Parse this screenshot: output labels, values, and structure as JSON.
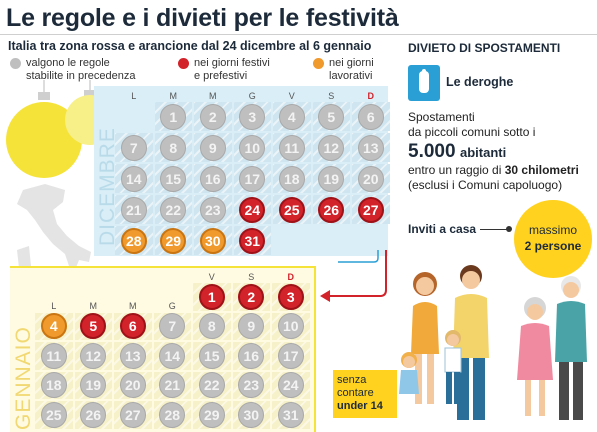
{
  "header": {
    "title": "Le regole e i divieti per le festività",
    "subtitle": "Italia tra zona rossa e arancione dal 24 dicembre al 6 gennaio"
  },
  "legend": [
    {
      "line1": "valgono le regole",
      "line2": "stabilite in precedenza",
      "color": "#bfbfbf"
    },
    {
      "line1": "nei giorni festivi",
      "line2": "e prefestivi",
      "color": "#d2222a"
    },
    {
      "line1": "nei giorni",
      "line2": "lavorativi",
      "color": "#f0992c"
    }
  ],
  "weekdays": [
    "L",
    "M",
    "M",
    "G",
    "V",
    "S",
    "D"
  ],
  "december": {
    "label": "DICEMBRE",
    "days": [
      {
        "n": "1",
        "s": "gray"
      },
      {
        "n": "2",
        "s": "gray"
      },
      {
        "n": "3",
        "s": "gray"
      },
      {
        "n": "4",
        "s": "gray"
      },
      {
        "n": "5",
        "s": "gray"
      },
      {
        "n": "6",
        "s": "gray"
      },
      {
        "n": "7",
        "s": "gray"
      },
      {
        "n": "8",
        "s": "gray"
      },
      {
        "n": "9",
        "s": "gray"
      },
      {
        "n": "10",
        "s": "gray"
      },
      {
        "n": "11",
        "s": "gray"
      },
      {
        "n": "12",
        "s": "gray"
      },
      {
        "n": "13",
        "s": "gray"
      },
      {
        "n": "14",
        "s": "gray"
      },
      {
        "n": "15",
        "s": "gray"
      },
      {
        "n": "16",
        "s": "gray"
      },
      {
        "n": "17",
        "s": "gray"
      },
      {
        "n": "18",
        "s": "gray"
      },
      {
        "n": "19",
        "s": "gray"
      },
      {
        "n": "20",
        "s": "gray"
      },
      {
        "n": "21",
        "s": "gray"
      },
      {
        "n": "22",
        "s": "gray"
      },
      {
        "n": "23",
        "s": "gray"
      },
      {
        "n": "24",
        "s": "red"
      },
      {
        "n": "25",
        "s": "red"
      },
      {
        "n": "26",
        "s": "red"
      },
      {
        "n": "27",
        "s": "red"
      },
      {
        "n": "28",
        "s": "orange"
      },
      {
        "n": "29",
        "s": "orange"
      },
      {
        "n": "30",
        "s": "orange"
      },
      {
        "n": "31",
        "s": "red"
      }
    ]
  },
  "january": {
    "label": "GENNAIO",
    "days": [
      {
        "n": "1",
        "s": "red"
      },
      {
        "n": "2",
        "s": "red"
      },
      {
        "n": "3",
        "s": "red"
      },
      {
        "n": "4",
        "s": "orange"
      },
      {
        "n": "5",
        "s": "red"
      },
      {
        "n": "6",
        "s": "red"
      },
      {
        "n": "7",
        "s": "gray"
      },
      {
        "n": "8",
        "s": "gray"
      },
      {
        "n": "9",
        "s": "gray"
      },
      {
        "n": "10",
        "s": "gray"
      },
      {
        "n": "11",
        "s": "gray"
      },
      {
        "n": "12",
        "s": "gray"
      },
      {
        "n": "13",
        "s": "gray"
      },
      {
        "n": "14",
        "s": "gray"
      },
      {
        "n": "15",
        "s": "gray"
      },
      {
        "n": "16",
        "s": "gray"
      },
      {
        "n": "17",
        "s": "gray"
      },
      {
        "n": "18",
        "s": "gray"
      },
      {
        "n": "19",
        "s": "gray"
      },
      {
        "n": "20",
        "s": "gray"
      },
      {
        "n": "21",
        "s": "gray"
      },
      {
        "n": "22",
        "s": "gray"
      },
      {
        "n": "23",
        "s": "gray"
      },
      {
        "n": "24",
        "s": "gray"
      },
      {
        "n": "25",
        "s": "gray"
      },
      {
        "n": "26",
        "s": "gray"
      },
      {
        "n": "27",
        "s": "gray"
      },
      {
        "n": "28",
        "s": "gray"
      },
      {
        "n": "29",
        "s": "gray"
      },
      {
        "n": "30",
        "s": "gray"
      },
      {
        "n": "31",
        "s": "gray"
      }
    ]
  },
  "right": {
    "section_title": "DIVIETO DI SPOSTAMENTI",
    "deroghe_label": "Le deroghe",
    "hand_icon": "raised-hand-icon",
    "text1": "Spostamenti",
    "text2": "da piccoli comuni sotto i",
    "big_number": "5.000",
    "big_unit": "abitanti",
    "text3_pre": "entro un raggio di",
    "text3_bold": "30 chilometri",
    "text4": "(esclusi i Comuni capoluogo)",
    "invites_label": "Inviti a casa",
    "max_label": "massimo",
    "max_value": "2 persone",
    "under_line1": "senza",
    "under_line2": "contare",
    "under_line3": "under 14"
  },
  "colors": {
    "red": "#d2222a",
    "orange": "#f0992c",
    "gray": "#bfbfbf",
    "panel": "#d9eef7",
    "badge": "#ffd21f",
    "icon_bg": "#2a9fd6"
  }
}
